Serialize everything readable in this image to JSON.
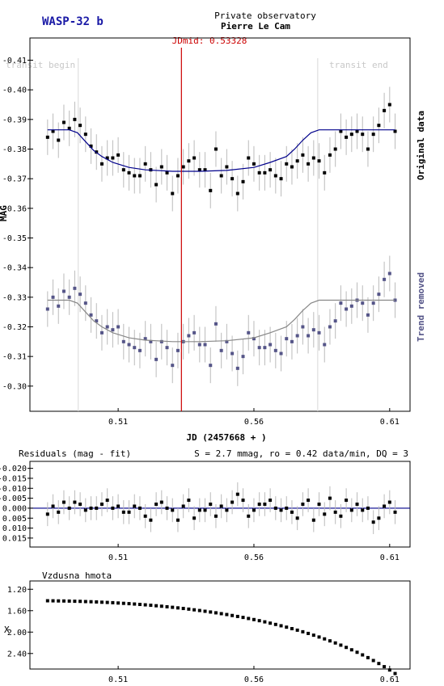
{
  "header": {
    "target": "WASP-32 b",
    "observatory_line": "Private observatory",
    "observer": "Pierre Le Cam"
  },
  "colors": {
    "target": "#1a1aa6",
    "fit_line": "#00008b",
    "original_points": "#000000",
    "detrended_points": "#555588",
    "midline": "#cc0000",
    "trend_label": "#555588",
    "error_bars": "#bbbbbb"
  },
  "chart_data": [
    {
      "type": "scatter",
      "id": "lightcurve",
      "title": "",
      "xlabel": "JD (2457668 + )",
      "ylabel": "MAG",
      "xlim": [
        0.4775,
        0.6175
      ],
      "ylim": [
        -0.4175,
        -0.2915
      ],
      "x_ticks": [
        0.51,
        0.56,
        0.61
      ],
      "x_tick_labels": [
        "0.51",
        "0.56",
        "0.61"
      ],
      "y_ticks": [
        -0.41,
        -0.4,
        -0.39,
        -0.38,
        -0.37,
        -0.36,
        -0.35,
        -0.34,
        -0.33,
        -0.32,
        -0.31,
        -0.3
      ],
      "y_tick_labels": [
        "-0.41",
        "-0.40",
        "-0.39",
        "-0.38",
        "-0.37",
        "-0.36",
        "-0.35",
        "-0.34",
        "-0.33",
        "-0.32",
        "-0.31",
        "-0.30"
      ],
      "grid": false,
      "midline": {
        "x": 0.5333,
        "label": "JDmid: 0.53328"
      },
      "transit_begin": {
        "x": 0.4953,
        "label": "transit begin"
      },
      "transit_end": {
        "x": 0.5835,
        "label": "transit end"
      },
      "side_labels": {
        "top": "Original data",
        "bottom": "Trend removed"
      },
      "error": 0.006,
      "series": [
        {
          "key": "original",
          "x": [
            0.484,
            0.486,
            0.488,
            0.49,
            0.492,
            0.494,
            0.496,
            0.498,
            0.5,
            0.502,
            0.504,
            0.506,
            0.508,
            0.51,
            0.512,
            0.514,
            0.516,
            0.518,
            0.52,
            0.522,
            0.524,
            0.526,
            0.528,
            0.53,
            0.532,
            0.534,
            0.536,
            0.538,
            0.54,
            0.542,
            0.544,
            0.546,
            0.548,
            0.55,
            0.552,
            0.554,
            0.556,
            0.558,
            0.56,
            0.562,
            0.564,
            0.566,
            0.568,
            0.57,
            0.572,
            0.574,
            0.576,
            0.578,
            0.58,
            0.582,
            0.584,
            0.586,
            0.588,
            0.59,
            0.592,
            0.594,
            0.596,
            0.598,
            0.6,
            0.602,
            0.604,
            0.606,
            0.608,
            0.61,
            0.612
          ],
          "y": [
            -0.384,
            -0.386,
            -0.383,
            -0.389,
            -0.387,
            -0.39,
            -0.388,
            -0.385,
            -0.381,
            -0.379,
            -0.375,
            -0.377,
            -0.377,
            -0.378,
            -0.373,
            -0.372,
            -0.371,
            -0.371,
            -0.375,
            -0.373,
            -0.368,
            -0.374,
            -0.372,
            -0.365,
            -0.371,
            -0.374,
            -0.376,
            -0.377,
            -0.373,
            -0.373,
            -0.366,
            -0.38,
            -0.371,
            -0.374,
            -0.37,
            -0.365,
            -0.369,
            -0.377,
            -0.375,
            -0.372,
            -0.372,
            -0.373,
            -0.371,
            -0.37,
            -0.375,
            -0.374,
            -0.376,
            -0.378,
            -0.375,
            -0.377,
            -0.376,
            -0.372,
            -0.378,
            -0.38,
            -0.386,
            -0.384,
            -0.385,
            -0.386,
            -0.385,
            -0.38,
            -0.385,
            -0.388,
            -0.393,
            -0.395,
            -0.386
          ],
          "fit_x": [
            0.484,
            0.492,
            0.495,
            0.498,
            0.501,
            0.504,
            0.508,
            0.514,
            0.52,
            0.53,
            0.54,
            0.55,
            0.56,
            0.566,
            0.572,
            0.575,
            0.578,
            0.581,
            0.584,
            0.592,
            0.612
          ],
          "fit_y": [
            -0.3865,
            -0.3865,
            -0.3855,
            -0.3825,
            -0.3795,
            -0.3775,
            -0.3755,
            -0.3738,
            -0.373,
            -0.3725,
            -0.3725,
            -0.3728,
            -0.3738,
            -0.3755,
            -0.3775,
            -0.38,
            -0.383,
            -0.3855,
            -0.3865,
            -0.3865,
            -0.3865
          ]
        },
        {
          "key": "detrended",
          "x": [
            0.484,
            0.486,
            0.488,
            0.49,
            0.492,
            0.494,
            0.496,
            0.498,
            0.5,
            0.502,
            0.504,
            0.506,
            0.508,
            0.51,
            0.512,
            0.514,
            0.516,
            0.518,
            0.52,
            0.522,
            0.524,
            0.526,
            0.528,
            0.53,
            0.532,
            0.534,
            0.536,
            0.538,
            0.54,
            0.542,
            0.544,
            0.546,
            0.548,
            0.55,
            0.552,
            0.554,
            0.556,
            0.558,
            0.56,
            0.562,
            0.564,
            0.566,
            0.568,
            0.57,
            0.572,
            0.574,
            0.576,
            0.578,
            0.58,
            0.582,
            0.584,
            0.586,
            0.588,
            0.59,
            0.592,
            0.594,
            0.596,
            0.598,
            0.6,
            0.602,
            0.604,
            0.606,
            0.608,
            0.61,
            0.612
          ],
          "y": [
            -0.326,
            -0.33,
            -0.327,
            -0.332,
            -0.33,
            -0.333,
            -0.331,
            -0.328,
            -0.324,
            -0.322,
            -0.318,
            -0.32,
            -0.319,
            -0.32,
            -0.315,
            -0.314,
            -0.313,
            -0.312,
            -0.316,
            -0.315,
            -0.309,
            -0.315,
            -0.313,
            -0.307,
            -0.312,
            -0.315,
            -0.317,
            -0.318,
            -0.314,
            -0.314,
            -0.307,
            -0.321,
            -0.312,
            -0.315,
            -0.311,
            -0.306,
            -0.31,
            -0.318,
            -0.316,
            -0.313,
            -0.313,
            -0.314,
            -0.312,
            -0.311,
            -0.316,
            -0.315,
            -0.317,
            -0.32,
            -0.317,
            -0.319,
            -0.318,
            -0.314,
            -0.32,
            -0.322,
            -0.328,
            -0.326,
            -0.327,
            -0.329,
            -0.328,
            -0.324,
            -0.328,
            -0.331,
            -0.336,
            -0.338,
            -0.329
          ],
          "fit_x": [
            0.484,
            0.492,
            0.495,
            0.498,
            0.501,
            0.504,
            0.508,
            0.514,
            0.52,
            0.53,
            0.54,
            0.55,
            0.56,
            0.566,
            0.572,
            0.575,
            0.578,
            0.581,
            0.584,
            0.592,
            0.612
          ],
          "fit_y": [
            -0.329,
            -0.329,
            -0.328,
            -0.325,
            -0.322,
            -0.32,
            -0.318,
            -0.3163,
            -0.3155,
            -0.315,
            -0.315,
            -0.3153,
            -0.3163,
            -0.318,
            -0.32,
            -0.3225,
            -0.3255,
            -0.328,
            -0.329,
            -0.329,
            -0.329
          ]
        }
      ]
    },
    {
      "type": "scatter",
      "id": "residuals",
      "title": "Residuals (mag - fit)",
      "stats": "S = 2.7 mmag, ro = 0.42 data/min, DQ = 3",
      "xlim": [
        0.4775,
        0.6175
      ],
      "ylim": [
        -0.0235,
        0.0195
      ],
      "x_ticks": [
        0.51,
        0.56,
        0.61
      ],
      "x_tick_labels": [
        "0.51",
        "0.56",
        "0.61"
      ],
      "y_ticks": [
        -0.02,
        -0.015,
        -0.01,
        -0.005,
        0.0,
        0.005,
        0.01,
        0.015
      ],
      "y_tick_labels": [
        "-0.020",
        "-0.015",
        "-0.010",
        "-0.005",
        "0.000",
        "0.005",
        "0.010",
        "0.015"
      ],
      "zero_line": 0.0,
      "error": 0.006,
      "series": [
        {
          "key": "residuals",
          "x": [
            0.484,
            0.486,
            0.488,
            0.49,
            0.492,
            0.494,
            0.496,
            0.498,
            0.5,
            0.502,
            0.504,
            0.506,
            0.508,
            0.51,
            0.512,
            0.514,
            0.516,
            0.518,
            0.52,
            0.522,
            0.524,
            0.526,
            0.528,
            0.53,
            0.532,
            0.534,
            0.536,
            0.538,
            0.54,
            0.542,
            0.544,
            0.546,
            0.548,
            0.55,
            0.552,
            0.554,
            0.556,
            0.558,
            0.56,
            0.562,
            0.564,
            0.566,
            0.568,
            0.57,
            0.572,
            0.574,
            0.576,
            0.578,
            0.58,
            0.582,
            0.584,
            0.586,
            0.588,
            0.59,
            0.592,
            0.594,
            0.596,
            0.598,
            0.6,
            0.602,
            0.604,
            0.606,
            0.608,
            0.61,
            0.612
          ],
          "y": [
            0.003,
            -0.001,
            0.002,
            -0.003,
            0.0,
            -0.003,
            -0.002,
            0.001,
            0.0,
            0.0,
            -0.002,
            -0.004,
            0.0,
            -0.001,
            0.002,
            0.002,
            -0.001,
            0.0,
            0.004,
            0.006,
            -0.002,
            -0.003,
            0.0,
            0.001,
            0.006,
            -0.001,
            -0.004,
            0.005,
            0.001,
            0.001,
            -0.002,
            0.004,
            -0.001,
            0.001,
            -0.003,
            -0.007,
            -0.004,
            0.004,
            0.001,
            -0.002,
            -0.002,
            -0.004,
            0.0,
            0.001,
            0.0,
            0.002,
            0.005,
            -0.002,
            -0.004,
            0.006,
            -0.002,
            0.003,
            -0.005,
            0.002,
            0.004,
            -0.004,
            0.001,
            -0.002,
            0.001,
            0.0,
            0.007,
            0.005,
            -0.001,
            -0.003,
            0.002
          ]
        }
      ]
    },
    {
      "type": "scatter",
      "id": "airmass",
      "title": "Vzdusna hmota",
      "ylabel": "X",
      "xlim": [
        0.4775,
        0.6175
      ],
      "ylim": [
        1.045,
        2.69
      ],
      "x_ticks": [
        0.51,
        0.56,
        0.61
      ],
      "x_tick_labels": [
        "0.51",
        "0.56",
        "0.61"
      ],
      "y_ticks": [
        1.2,
        1.6,
        2.0,
        2.4
      ],
      "y_tick_labels": [
        "1.20",
        "1.60",
        "2.00",
        "2.40"
      ],
      "series": [
        {
          "key": "airmass",
          "x": [
            0.484,
            0.486,
            0.488,
            0.49,
            0.492,
            0.494,
            0.496,
            0.498,
            0.5,
            0.502,
            0.504,
            0.506,
            0.508,
            0.51,
            0.512,
            0.514,
            0.516,
            0.518,
            0.52,
            0.522,
            0.524,
            0.526,
            0.528,
            0.53,
            0.532,
            0.534,
            0.536,
            0.538,
            0.54,
            0.542,
            0.544,
            0.546,
            0.548,
            0.55,
            0.552,
            0.554,
            0.556,
            0.558,
            0.56,
            0.562,
            0.564,
            0.566,
            0.568,
            0.57,
            0.572,
            0.574,
            0.576,
            0.578,
            0.58,
            0.582,
            0.584,
            0.586,
            0.588,
            0.59,
            0.592,
            0.594,
            0.596,
            0.598,
            0.6,
            0.602,
            0.604,
            0.606,
            0.608,
            0.61,
            0.612
          ],
          "y": [
            1.415,
            1.416,
            1.418,
            1.419,
            1.421,
            1.424,
            1.426,
            1.43,
            1.433,
            1.437,
            1.442,
            1.446,
            1.451,
            1.457,
            1.463,
            1.469,
            1.476,
            1.483,
            1.491,
            1.499,
            1.508,
            1.517,
            1.527,
            1.537,
            1.548,
            1.559,
            1.571,
            1.584,
            1.597,
            1.611,
            1.625,
            1.64,
            1.656,
            1.672,
            1.69,
            1.708,
            1.726,
            1.746,
            1.766,
            1.787,
            1.809,
            1.833,
            1.857,
            1.882,
            1.908,
            1.936,
            1.964,
            1.994,
            2.025,
            2.058,
            2.092,
            2.127,
            2.164,
            2.203,
            2.244,
            2.286,
            2.331,
            2.377,
            2.426,
            2.477,
            2.531,
            2.587,
            2.646,
            2.708,
            2.774
          ]
        }
      ]
    }
  ]
}
